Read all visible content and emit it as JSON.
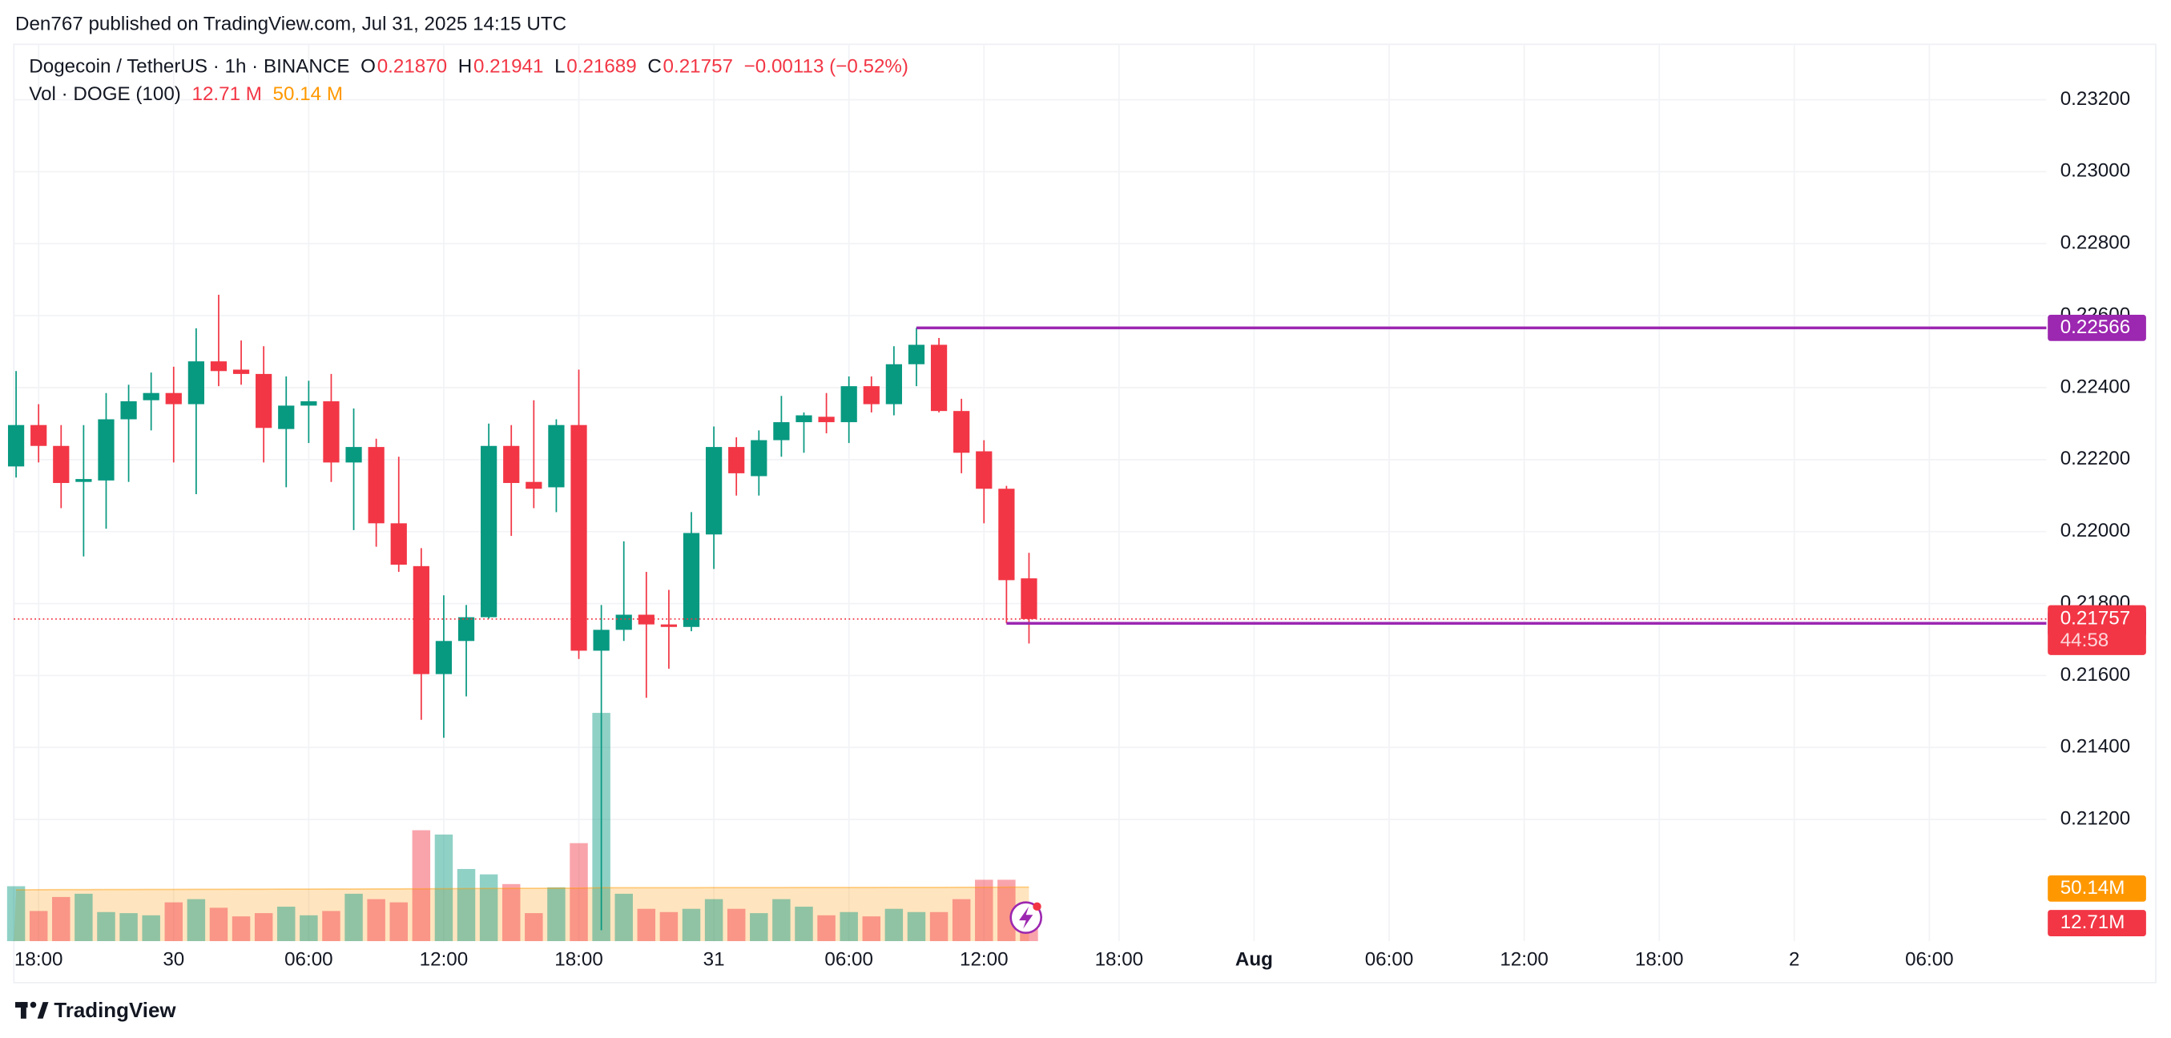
{
  "header": {
    "text": "Den767 published on TradingView.com, Jul 31, 2025 14:15 UTC"
  },
  "footer": {
    "brand": "TradingView"
  },
  "chart_data": {
    "type": "candlestick",
    "legend": {
      "symbol": "Dogecoin / TetherUS · 1h · BINANCE",
      "ohlc": [
        {
          "key": "O",
          "value": "0.21870"
        },
        {
          "key": "H",
          "value": "0.21941"
        },
        {
          "key": "L",
          "value": "0.21689"
        },
        {
          "key": "C",
          "value": "0.21757"
        }
      ],
      "change": "−0.00113 (−0.52%)",
      "volume_title": "Vol · DOGE (100)",
      "volume_value": "12.71 M",
      "volume_ma_value": "50.14 M"
    },
    "x": [
      -1,
      0,
      1,
      2,
      3,
      4,
      5,
      6,
      7,
      8,
      9,
      10,
      11,
      12,
      13,
      14,
      15,
      16,
      17,
      18,
      19,
      20,
      21,
      22,
      23,
      24,
      25,
      26,
      27,
      28,
      29,
      30,
      31,
      32,
      33,
      34,
      35,
      36,
      37,
      38,
      39,
      40,
      41,
      42,
      43,
      44
    ],
    "open": [
      0.22181,
      0.22296,
      0.22238,
      0.22138,
      0.22142,
      0.22312,
      0.22365,
      0.22385,
      0.22354,
      0.22473,
      0.2245,
      0.22438,
      0.22285,
      0.2235,
      0.22362,
      0.22192,
      0.22235,
      0.22023,
      0.21904,
      0.21604,
      0.21696,
      0.21762,
      0.22238,
      0.22138,
      0.22123,
      0.22296,
      0.21669,
      0.21727,
      0.21769,
      0.21742,
      0.21735,
      0.21992,
      0.22235,
      0.22154,
      0.22254,
      0.22304,
      0.22319,
      0.22304,
      0.22404,
      0.22354,
      0.22465,
      0.22519,
      0.22335,
      0.22223,
      0.22119,
      0.2187
    ],
    "high": [
      0.22446,
      0.22354,
      0.22296,
      0.22296,
      0.22385,
      0.22408,
      0.22442,
      0.22458,
      0.22565,
      0.22658,
      0.22531,
      0.22515,
      0.22431,
      0.22419,
      0.22438,
      0.22342,
      0.22258,
      0.22208,
      0.21954,
      0.21823,
      0.21796,
      0.223,
      0.22296,
      0.22365,
      0.22312,
      0.2245,
      0.21796,
      0.21973,
      0.21888,
      0.21838,
      0.22054,
      0.22292,
      0.22262,
      0.22281,
      0.22377,
      0.22331,
      0.22385,
      0.22431,
      0.22431,
      0.22515,
      0.22566,
      0.22538,
      0.22369,
      0.22254,
      0.22127,
      0.21941
    ],
    "low": [
      0.2215,
      0.22192,
      0.22065,
      0.21931,
      0.22008,
      0.22138,
      0.22281,
      0.22192,
      0.22104,
      0.22404,
      0.22408,
      0.22192,
      0.22123,
      0.22246,
      0.22138,
      0.22004,
      0.21958,
      0.21888,
      0.21477,
      0.21427,
      0.21542,
      0.21758,
      0.21988,
      0.22065,
      0.22054,
      0.21646,
      0.20892,
      0.21696,
      0.21538,
      0.21619,
      0.21723,
      0.21896,
      0.221,
      0.221,
      0.22208,
      0.22219,
      0.22273,
      0.22246,
      0.22331,
      0.22323,
      0.22404,
      0.22331,
      0.22162,
      0.22023,
      0.21745,
      0.21689
    ],
    "close": [
      0.22296,
      0.22238,
      0.22135,
      0.22146,
      0.22312,
      0.22362,
      0.22385,
      0.22354,
      0.22473,
      0.22446,
      0.22438,
      0.22288,
      0.2235,
      0.22362,
      0.22192,
      0.22235,
      0.22023,
      0.21908,
      0.21604,
      0.21696,
      0.21762,
      0.22238,
      0.22135,
      0.22119,
      0.22296,
      0.21669,
      0.21727,
      0.21769,
      0.21742,
      0.21735,
      0.21996,
      0.22235,
      0.22162,
      0.22254,
      0.22304,
      0.22323,
      0.22304,
      0.22404,
      0.22354,
      0.22465,
      0.22519,
      0.22335,
      0.22219,
      0.22119,
      0.21865,
      0.21757
    ],
    "up_color": "#089981",
    "down_color": "#f23645",
    "xlim": [
      -1.1,
      89.2
    ],
    "xticks": [
      {
        "value": 0,
        "label": "18:00"
      },
      {
        "value": 6,
        "label": "30"
      },
      {
        "value": 12,
        "label": "06:00"
      },
      {
        "value": 18,
        "label": "12:00"
      },
      {
        "value": 24,
        "label": "18:00"
      },
      {
        "value": 30,
        "label": "31"
      },
      {
        "value": 36,
        "label": "06:00"
      },
      {
        "value": 42,
        "label": "12:00"
      },
      {
        "value": 48,
        "label": "18:00"
      },
      {
        "value": 54,
        "label": "Aug"
      },
      {
        "value": 60,
        "label": "06:00"
      },
      {
        "value": 66,
        "label": "12:00"
      },
      {
        "value": 72,
        "label": "18:00"
      },
      {
        "value": 78,
        "label": "2"
      },
      {
        "value": 84,
        "label": "06:00"
      }
    ],
    "ylim": [
      0.20862,
      0.23354
    ],
    "yticks": [
      {
        "value": 0.212,
        "label": "0.21200"
      },
      {
        "value": 0.214,
        "label": "0.21400"
      },
      {
        "value": 0.216,
        "label": "0.21600"
      },
      {
        "value": 0.218,
        "label": "0.21800"
      },
      {
        "value": 0.22,
        "label": "0.22000"
      },
      {
        "value": 0.222,
        "label": "0.22200"
      },
      {
        "value": 0.224,
        "label": "0.22400"
      },
      {
        "value": 0.226,
        "label": "0.22600"
      },
      {
        "value": 0.228,
        "label": "0.22800"
      },
      {
        "value": 0.23,
        "label": "0.23000"
      },
      {
        "value": 0.232,
        "label": "0.23200"
      }
    ],
    "grid": true,
    "last_price": {
      "value": 0.21757,
      "label": "0.21757",
      "countdown": "44:58",
      "color": "#f23645"
    },
    "hlines": [
      {
        "value": 0.22566,
        "label": "0.22566",
        "x_start": 39,
        "color": "#9c27b0"
      },
      {
        "value": 0.21745,
        "label": "0.21745",
        "x_start": 43,
        "color": "#9c27b0"
      }
    ],
    "volume": {
      "values": [
        51,
        28,
        41,
        44,
        27,
        26,
        24,
        36,
        39,
        31,
        23,
        26,
        32,
        24,
        28,
        44,
        39,
        36,
        103,
        99,
        67,
        62,
        53,
        26,
        50,
        91,
        212,
        44,
        30,
        27,
        30,
        39,
        30,
        26,
        39,
        32,
        24,
        27,
        23,
        30,
        27,
        27,
        39,
        57,
        57,
        12.71
      ],
      "ylim": [
        0,
        833
      ],
      "label": "12.71M",
      "ma": {
        "values": [
          47.6,
          47.7,
          47.8,
          47.8,
          47.9,
          47.9,
          48.0,
          48.0,
          48.1,
          48.1,
          48.2,
          48.2,
          48.3,
          48.3,
          48.4,
          48.4,
          48.5,
          48.5,
          48.6,
          48.7,
          48.8,
          48.9,
          49.0,
          49.0,
          49.1,
          49.2,
          49.6,
          49.6,
          49.6,
          49.6,
          49.6,
          49.7,
          49.7,
          49.7,
          49.7,
          49.8,
          49.8,
          49.8,
          49.8,
          49.9,
          49.9,
          49.9,
          50.0,
          50.0,
          50.1,
          50.14
        ],
        "label": "50.14M",
        "color": "#ff9800"
      }
    }
  }
}
